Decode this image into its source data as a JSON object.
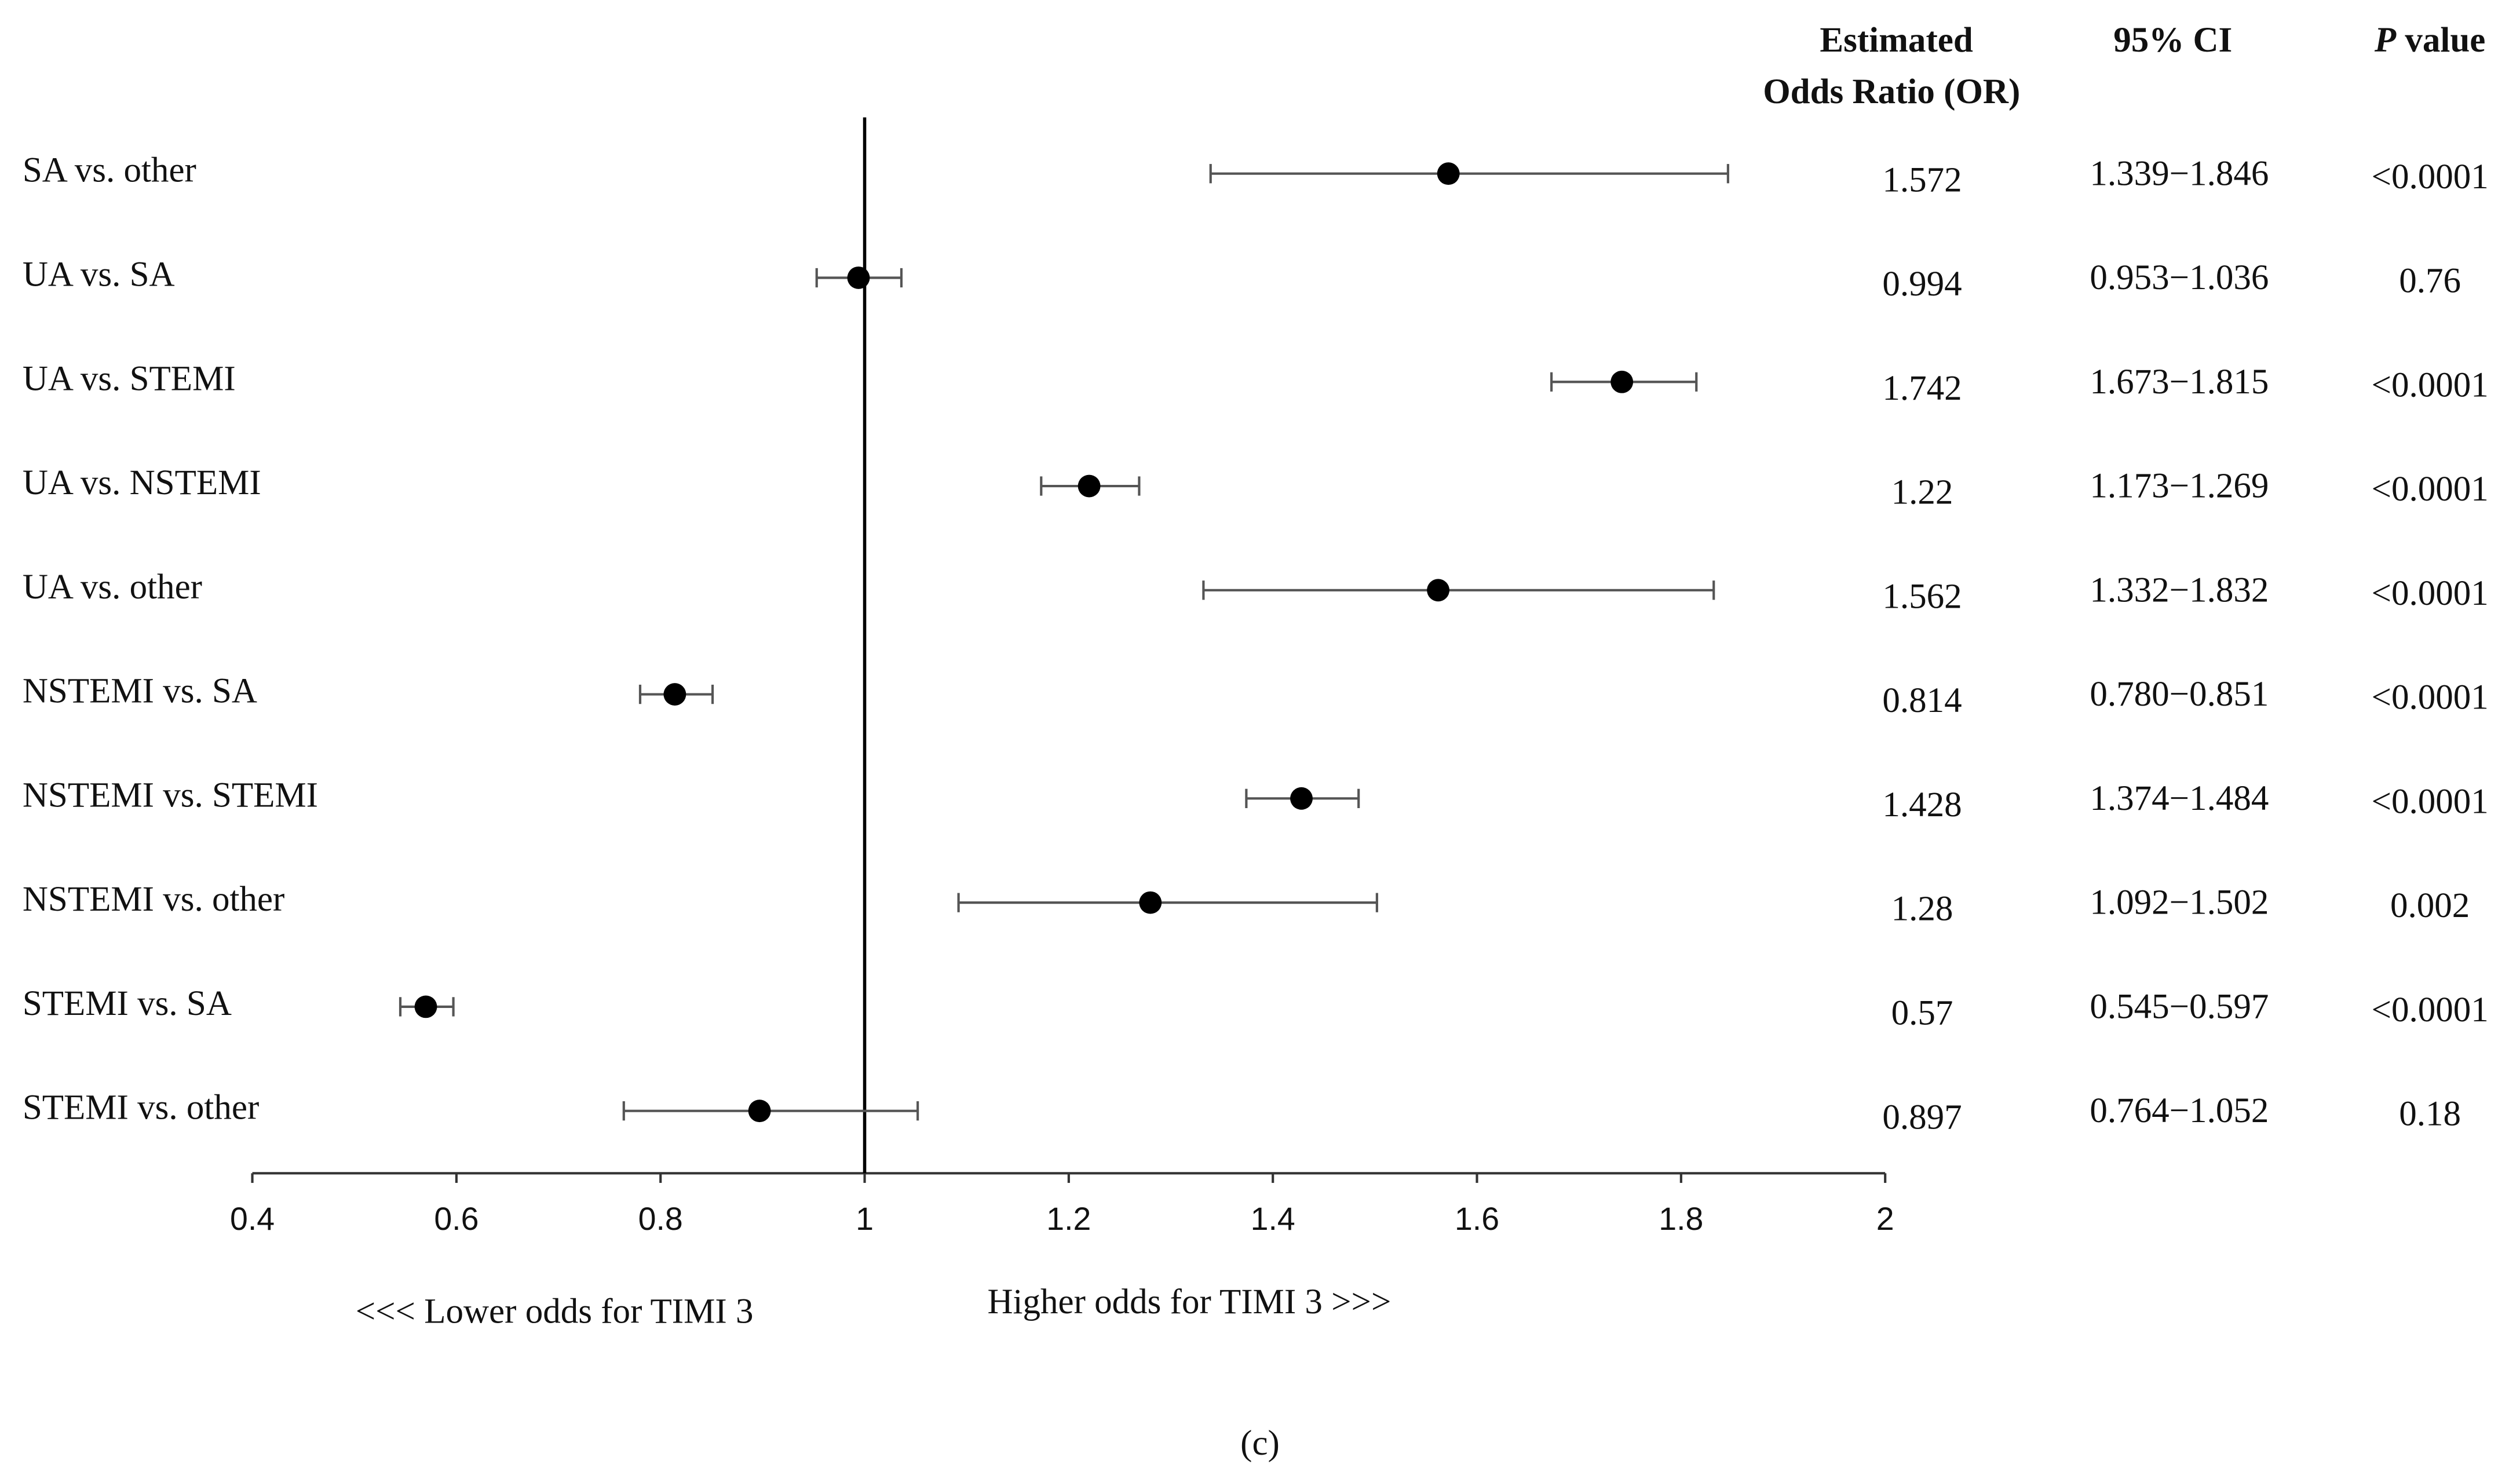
{
  "chart_data": {
    "type": "forest",
    "headers": {
      "estimate": [
        "Estimated",
        "Odds Ratio (OR)"
      ],
      "ci": "95% CI",
      "p": "P value"
    },
    "categories": [
      "SA vs. other",
      "UA vs. SA",
      "UA vs. STEMI",
      "UA vs. NSTEMI",
      "UA vs. other",
      "NSTEMI vs. SA",
      "NSTEMI vs. STEMI",
      "NSTEMI vs. other",
      "STEMI vs. SA",
      "STEMI vs. other"
    ],
    "values": [
      1.572,
      0.994,
      1.742,
      1.22,
      1.562,
      0.814,
      1.428,
      1.28,
      0.57,
      0.897
    ],
    "ci_low": [
      1.339,
      0.953,
      1.673,
      1.173,
      1.332,
      0.78,
      1.374,
      1.092,
      0.545,
      0.764
    ],
    "ci_high": [
      1.846,
      1.036,
      1.815,
      1.269,
      1.832,
      0.851,
      1.484,
      1.502,
      0.597,
      1.052
    ],
    "ci_labels": [
      "1.339−1.846",
      "0.953−1.036",
      "1.673−1.815",
      "1.173−1.269",
      "1.332−1.832",
      "0.780−0.851",
      "1.374−1.484",
      "1.092−1.502",
      "0.545−0.597",
      "0.764−1.052"
    ],
    "p_values": [
      "<0.0001",
      "0.76",
      "<0.0001",
      "<0.0001",
      "<0.0001",
      "<0.0001",
      "<0.0001",
      "0.002",
      "<0.0001",
      "0.18"
    ],
    "xlim": [
      0.4,
      2
    ],
    "xticks": [
      0.4,
      0.6,
      0.8,
      1,
      1.2,
      1.4,
      1.6,
      1.8,
      2
    ],
    "reference": 1,
    "color": "#000000",
    "annotations": [
      "<<< Lower odds for TIMI 3",
      "Higher odds for TIMI 3 >>>"
    ],
    "caption": "(c)"
  }
}
